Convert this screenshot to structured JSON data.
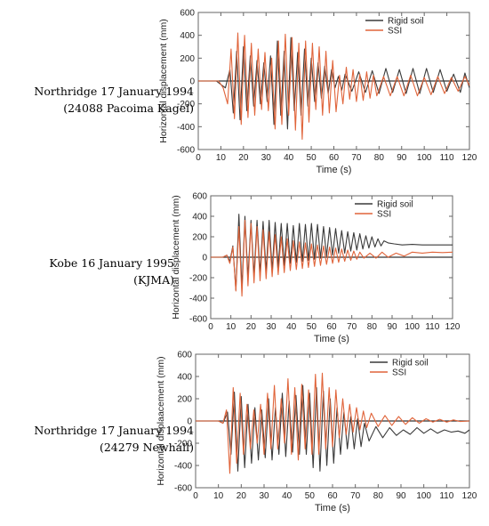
{
  "colors": {
    "rigid": "#3a3a3a",
    "ssi": "#e0643a",
    "zero": "#333333",
    "frame": "#666666"
  },
  "chart_data": [
    {
      "type": "line",
      "caption": [
        "Northridge 17 January 1994",
        "(24088 Pacoima Kagel)"
      ],
      "xlabel": "Time (s)",
      "ylabel": "Horizontal displacement (mm)",
      "xlim": [
        0,
        120
      ],
      "ylim": [
        -600,
        600
      ],
      "xticks": [
        "0",
        "10",
        "20",
        "30",
        "40",
        "50",
        "60",
        "70",
        "80",
        "90",
        "100",
        "110",
        "120"
      ],
      "yticks": [
        "-600",
        "-400",
        "-200",
        "0",
        "200",
        "400",
        "600"
      ],
      "legend": [
        "Rigid soil",
        "SSI"
      ],
      "legend_position": "top-right",
      "series": [
        {
          "name": "Rigid soil",
          "x": [
            0,
            8,
            10,
            12,
            14,
            15.5,
            17,
            18.5,
            20,
            21.5,
            23,
            24.5,
            26,
            27.5,
            29,
            30.5,
            32,
            33.5,
            35,
            36.5,
            38,
            39.5,
            41,
            42.5,
            44,
            45.5,
            47,
            48.5,
            50,
            51.5,
            53,
            54.5,
            56,
            57.5,
            59,
            60.5,
            62,
            63.5,
            65,
            68,
            71,
            74,
            77,
            80,
            83,
            86,
            89,
            92,
            95,
            98,
            101,
            104,
            107,
            110,
            113,
            116,
            118,
            120
          ],
          "y": [
            0,
            0,
            -30,
            -60,
            100,
            -280,
            260,
            -340,
            300,
            -260,
            220,
            -220,
            180,
            -200,
            160,
            -180,
            220,
            -380,
            350,
            -300,
            260,
            -420,
            380,
            -260,
            250,
            -300,
            280,
            -220,
            200,
            -180,
            160,
            -150,
            130,
            -110,
            100,
            -60,
            40,
            -80,
            60,
            -90,
            80,
            -100,
            90,
            -110,
            110,
            -100,
            100,
            -110,
            110,
            -110,
            110,
            -100,
            100,
            -90,
            60,
            -100,
            70,
            -60
          ]
        },
        {
          "name": "SSI",
          "x": [
            0,
            9,
            11,
            13,
            14.5,
            16,
            17.5,
            19,
            20.5,
            22,
            23.5,
            25,
            26.5,
            28,
            29.5,
            31,
            32.5,
            34,
            35.5,
            37,
            38.5,
            40,
            41.5,
            43,
            44.5,
            46,
            47.5,
            49,
            50.5,
            52,
            53.5,
            55,
            56.5,
            58,
            59.5,
            61,
            62.5,
            64,
            65.5,
            67,
            68.5,
            70,
            71.5,
            73,
            74.5,
            76,
            77.5,
            79,
            82,
            85,
            88,
            91,
            94,
            97,
            100,
            103,
            106,
            109,
            112,
            115,
            118,
            120
          ],
          "y": [
            0,
            0,
            -60,
            -200,
            280,
            -330,
            420,
            -380,
            400,
            -320,
            330,
            -300,
            280,
            -250,
            250,
            -260,
            200,
            -420,
            350,
            -380,
            410,
            -300,
            380,
            -430,
            330,
            -510,
            350,
            -360,
            330,
            -250,
            300,
            -300,
            260,
            -280,
            180,
            -270,
            50,
            -200,
            120,
            -160,
            100,
            -180,
            60,
            -170,
            80,
            -150,
            50,
            -130,
            40,
            -130,
            40,
            -130,
            50,
            -130,
            30,
            -120,
            40,
            -110,
            30,
            -90,
            40,
            -40
          ]
        }
      ]
    },
    {
      "type": "line",
      "caption": [
        "Kobe 16 January 1995",
        "(KJMA)"
      ],
      "xlabel": "Time (s)",
      "ylabel": "Horizontal displacement (mm)",
      "xlim": [
        0,
        120
      ],
      "ylim": [
        -600,
        600
      ],
      "xticks": [
        "0",
        "10",
        "20",
        "30",
        "40",
        "50",
        "60",
        "70",
        "80",
        "90",
        "100",
        "110",
        "120"
      ],
      "yticks": [
        "-600",
        "-400",
        "-200",
        "0",
        "200",
        "400",
        "600"
      ],
      "legend": [
        "Rigid soil",
        "SSI"
      ],
      "legend_position": "top-right",
      "series": [
        {
          "name": "Rigid soil",
          "x": [
            0,
            6,
            8,
            9.5,
            11,
            12.5,
            14,
            15.5,
            17,
            18.5,
            20,
            21.5,
            23,
            24.5,
            26,
            27.5,
            29,
            30.5,
            32,
            33.5,
            35,
            36.5,
            38,
            39.5,
            41,
            42.5,
            44,
            45.5,
            47,
            48.5,
            50,
            51.5,
            53,
            54.5,
            56,
            57.5,
            59,
            60.5,
            62,
            63.5,
            65,
            66.5,
            68,
            69.5,
            71,
            72.5,
            74,
            75.5,
            77,
            78.5,
            80,
            81.5,
            83,
            84.5,
            86,
            88,
            91,
            95,
            100,
            105,
            110,
            115,
            120
          ],
          "y": [
            0,
            0,
            20,
            -40,
            110,
            -320,
            420,
            -300,
            400,
            -200,
            360,
            -180,
            360,
            -160,
            350,
            -140,
            360,
            -130,
            340,
            -100,
            330,
            -80,
            330,
            -60,
            310,
            -50,
            330,
            -40,
            320,
            -30,
            330,
            -20,
            320,
            -10,
            300,
            10,
            290,
            20,
            280,
            40,
            260,
            40,
            250,
            60,
            240,
            70,
            230,
            80,
            210,
            90,
            200,
            100,
            180,
            110,
            160,
            140,
            130,
            120,
            125,
            120,
            120,
            120,
            120
          ]
        },
        {
          "name": "SSI",
          "x": [
            0,
            6,
            8,
            9.5,
            11,
            12.5,
            14,
            15.5,
            17,
            18.5,
            20,
            21.5,
            23,
            24.5,
            26,
            27.5,
            29,
            30.5,
            32,
            33.5,
            35,
            36.5,
            38,
            39.5,
            41,
            42.5,
            44,
            45.5,
            47,
            48.5,
            50,
            51.5,
            53,
            54.5,
            56,
            57.5,
            59,
            60.5,
            62,
            63.5,
            65,
            66.5,
            68,
            69.5,
            71,
            72.5,
            74,
            76,
            79,
            82,
            85,
            88,
            92,
            96,
            100,
            105,
            110,
            115,
            120
          ],
          "y": [
            0,
            0,
            20,
            -60,
            100,
            -330,
            300,
            -380,
            360,
            -280,
            330,
            -250,
            300,
            -230,
            270,
            -210,
            250,
            -190,
            220,
            -170,
            200,
            -150,
            180,
            -130,
            160,
            -120,
            150,
            -110,
            140,
            -100,
            130,
            -90,
            120,
            -80,
            110,
            -70,
            100,
            -60,
            90,
            -50,
            80,
            -40,
            70,
            -30,
            60,
            -20,
            50,
            -10,
            40,
            -10,
            50,
            0,
            40,
            10,
            50,
            40,
            50,
            45,
            50
          ]
        }
      ]
    },
    {
      "type": "line",
      "caption": [
        "Northridge 17 January 1994",
        "(24279 Newhall)"
      ],
      "xlabel": "Time (s)",
      "ylabel": "Horizontal displaacement (mm)",
      "xlim": [
        0,
        120
      ],
      "ylim": [
        -600,
        600
      ],
      "xticks": [
        "0",
        "10",
        "20",
        "30",
        "40",
        "50",
        "60",
        "70",
        "80",
        "90",
        "100",
        "110",
        "120"
      ],
      "yticks": [
        "-600",
        "-400",
        "-200",
        "0",
        "200",
        "400",
        "600"
      ],
      "legend": [
        "Rigid soil",
        "SSI"
      ],
      "legend_position": "top-right",
      "series": [
        {
          "name": "Rigid soil",
          "x": [
            0,
            10,
            12,
            14,
            15.5,
            17,
            18.5,
            20,
            21.5,
            23,
            24.5,
            26,
            27.5,
            29,
            30.5,
            32,
            33.5,
            35,
            36.5,
            38,
            39.5,
            41,
            42.5,
            44,
            45.5,
            47,
            48.5,
            50,
            51.5,
            53,
            54.5,
            56,
            57.5,
            59,
            60.5,
            62,
            63.5,
            65,
            66.5,
            68,
            69.5,
            71,
            72.5,
            74,
            76,
            79,
            82,
            85,
            88,
            91,
            94,
            97,
            100,
            103,
            106,
            109,
            112,
            115,
            118,
            120
          ],
          "y": [
            0,
            0,
            -20,
            80,
            -300,
            260,
            -450,
            220,
            -420,
            150,
            -380,
            120,
            -350,
            100,
            -330,
            200,
            -350,
            120,
            -300,
            250,
            -320,
            180,
            -280,
            230,
            -300,
            320,
            -300,
            250,
            -420,
            300,
            -450,
            270,
            -400,
            200,
            -380,
            120,
            -300,
            80,
            -250,
            40,
            -250,
            20,
            -230,
            -20,
            -180,
            -50,
            -150,
            -60,
            -130,
            -80,
            -120,
            -60,
            -110,
            -70,
            -110,
            -80,
            -100,
            -90,
            -110,
            -80
          ]
        },
        {
          "name": "SSI",
          "x": [
            0,
            10,
            12,
            13.5,
            15,
            16.5,
            18,
            19.5,
            21,
            22.5,
            24,
            25.5,
            27,
            28.5,
            30,
            31.5,
            33,
            34.5,
            36,
            37.5,
            39,
            40.5,
            42,
            43.5,
            45,
            46.5,
            48,
            49.5,
            51,
            52.5,
            54,
            55.5,
            57,
            58.5,
            60,
            61.5,
            63,
            64.5,
            66,
            67.5,
            69,
            70.5,
            72,
            73.5,
            75,
            77,
            80,
            83,
            86,
            89,
            92,
            95,
            98,
            101,
            104,
            107,
            110,
            113,
            116,
            120
          ],
          "y": [
            0,
            0,
            -20,
            100,
            -470,
            300,
            -380,
            250,
            -300,
            150,
            -250,
            100,
            -200,
            150,
            -300,
            250,
            -250,
            320,
            -250,
            200,
            -200,
            380,
            -300,
            300,
            -350,
            330,
            -250,
            280,
            -300,
            420,
            -300,
            430,
            -250,
            300,
            -230,
            280,
            -150,
            200,
            -120,
            150,
            -100,
            120,
            -80,
            90,
            -60,
            70,
            -50,
            50,
            -40,
            40,
            -30,
            30,
            -20,
            20,
            -10,
            15,
            -10,
            10,
            -5,
            0
          ]
        }
      ]
    }
  ]
}
